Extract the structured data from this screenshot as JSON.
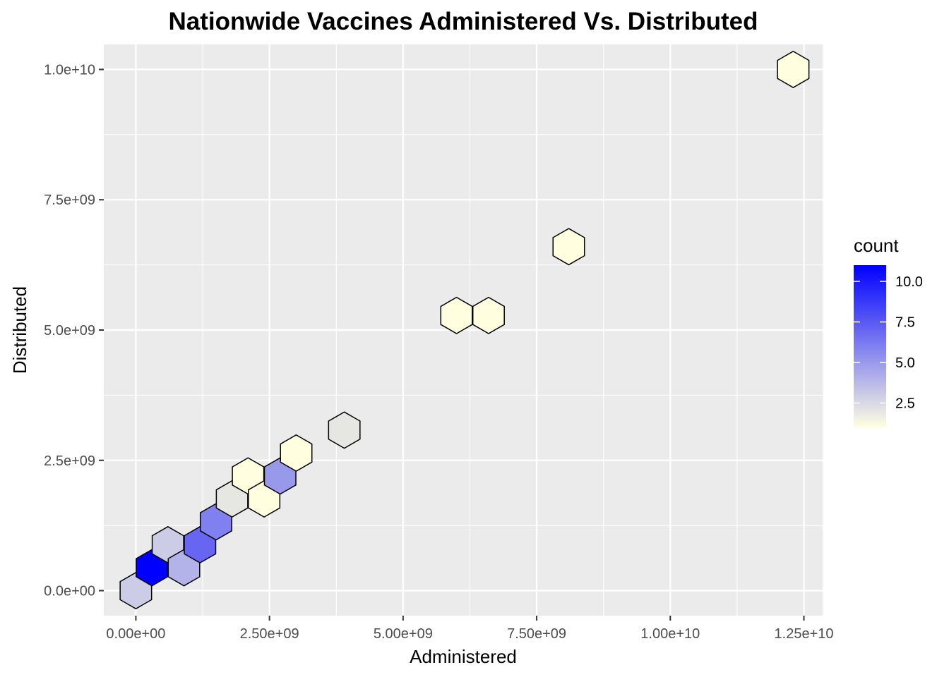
{
  "chart_data": {
    "type": "heatmap",
    "subtype": "hexbin",
    "title": "Nationwide Vaccines Administered Vs. Distributed",
    "xlabel": "Administered",
    "ylabel": "Distributed",
    "xlim": [
      -600000000.0,
      12850000000.0
    ],
    "ylim": [
      -480000000.0,
      10480000000.0
    ],
    "x_ticks": [
      0,
      2500000000.0,
      5000000000.0,
      7500000000.0,
      10000000000.0,
      12500000000.0
    ],
    "x_tick_labels": [
      "0.00e+00",
      "2.50e+09",
      "5.00e+09",
      "7.50e+09",
      "1.00e+10",
      "1.25e+10"
    ],
    "y_ticks": [
      0,
      2500000000.0,
      5000000000.0,
      7500000000.0,
      10000000000.0
    ],
    "y_tick_labels": [
      "0.0e+00",
      "2.5e+09",
      "5.0e+09",
      "7.5e+09",
      "1.0e+10"
    ],
    "grid": true,
    "background": "#EBEBEB",
    "grid_color": "#FFFFFF",
    "hex_edge_color": "#000000",
    "color_low": "#FFFFE0",
    "color_high": "#0000FF",
    "count_range": [
      1,
      11
    ],
    "legend": {
      "title": "count",
      "position": "right",
      "ticks": [
        2.5,
        5.0,
        7.5,
        10.0
      ],
      "tick_labels": [
        "2.5",
        "5.0",
        "7.5",
        "10.0"
      ]
    },
    "bins": [
      {
        "x": 0.0,
        "y": 0.0,
        "count": 3
      },
      {
        "x": 300000000.0,
        "y": 440000000.0,
        "count": 11
      },
      {
        "x": 600000000.0,
        "y": 880000000.0,
        "count": 3
      },
      {
        "x": 900000000.0,
        "y": 440000000.0,
        "count": 4
      },
      {
        "x": 1200000000.0,
        "y": 880000000.0,
        "count": 7
      },
      {
        "x": 1500000000.0,
        "y": 1320000000.0,
        "count": 6
      },
      {
        "x": 1800000000.0,
        "y": 1760000000.0,
        "count": 2
      },
      {
        "x": 2100000000.0,
        "y": 2200000000.0,
        "count": 1
      },
      {
        "x": 2400000000.0,
        "y": 1760000000.0,
        "count": 1
      },
      {
        "x": 2700000000.0,
        "y": 2200000000.0,
        "count": 5
      },
      {
        "x": 3000000000.0,
        "y": 2640000000.0,
        "count": 1
      },
      {
        "x": 3900000000.0,
        "y": 3080000000.0,
        "count": 2
      },
      {
        "x": 6000000000.0,
        "y": 5280000000.0,
        "count": 1
      },
      {
        "x": 6600000000.0,
        "y": 5280000000.0,
        "count": 1
      },
      {
        "x": 8100000000.0,
        "y": 6600000000.0,
        "count": 1
      },
      {
        "x": 12300000000.0,
        "y": 10000000000.0,
        "count": 1
      }
    ]
  }
}
